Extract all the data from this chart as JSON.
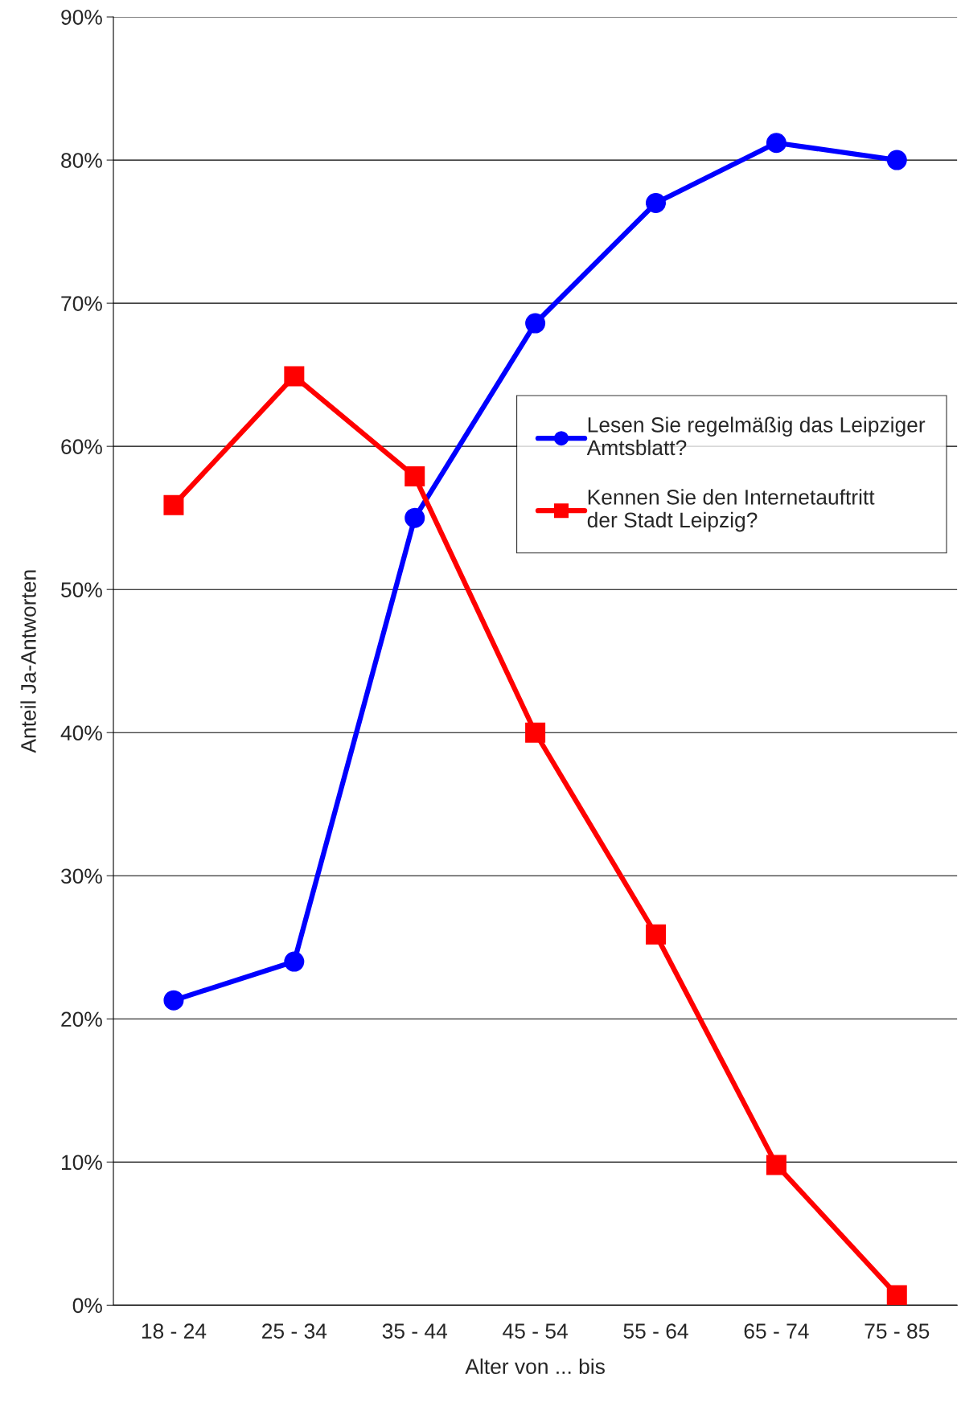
{
  "chart_data": {
    "type": "line",
    "xlabel": "Alter von ... bis",
    "ylabel": "Anteil Ja-Antworten",
    "categories": [
      "18 - 24",
      "25 - 34",
      "35 - 44",
      "45 - 54",
      "55 - 64",
      "65 - 74",
      "75 - 85"
    ],
    "series": [
      {
        "name": "Lesen Sie regelmäßig das Leipziger Amtsblatt?",
        "color": "#0000ff",
        "marker": "circle",
        "values": [
          21.3,
          24.0,
          55.0,
          68.6,
          77.0,
          81.2,
          80.0
        ]
      },
      {
        "name": "Kennen Sie den Internetauftritt der Stadt Leipzig?",
        "color": "#ff0000",
        "marker": "square",
        "values": [
          55.9,
          64.9,
          57.9,
          40.0,
          25.9,
          9.8,
          0.7
        ]
      }
    ],
    "ylim": [
      0,
      90
    ],
    "yticks": [
      {
        "value": 0,
        "label": "0%"
      },
      {
        "value": 10,
        "label": "10%"
      },
      {
        "value": 20,
        "label": "20%"
      },
      {
        "value": 30,
        "label": "30%"
      },
      {
        "value": 40,
        "label": "40%"
      },
      {
        "value": 50,
        "label": "50%"
      },
      {
        "value": 60,
        "label": "60%"
      },
      {
        "value": 70,
        "label": "70%"
      },
      {
        "value": 80,
        "label": "80%"
      },
      {
        "value": 90,
        "label": "90%"
      }
    ],
    "grid": "y",
    "legend": "right",
    "line_style": "solid"
  }
}
